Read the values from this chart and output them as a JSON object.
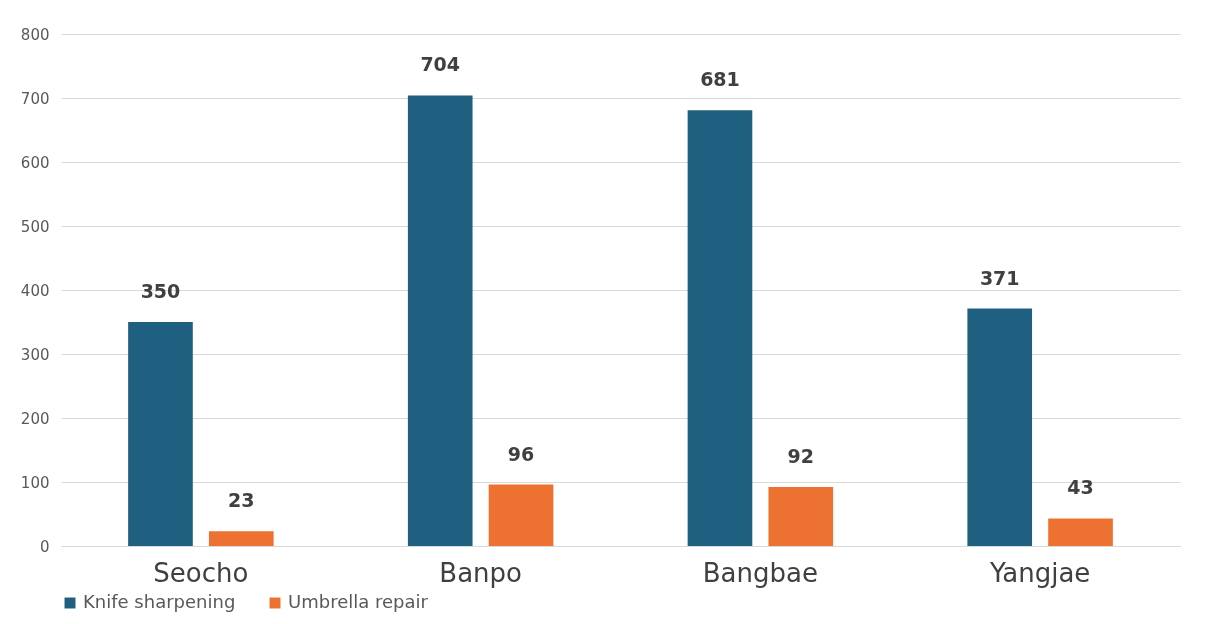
{
  "chart_data": {
    "type": "bar",
    "categories": [
      "Seocho",
      "Banpo",
      "Bangbae",
      "Yangjae"
    ],
    "series": [
      {
        "name": "Knife sharpening",
        "color": "#1f5f7f",
        "values": [
          350,
          704,
          681,
          371
        ]
      },
      {
        "name": "Umbrella repair",
        "color": "#ed7131",
        "values": [
          23,
          96,
          92,
          43
        ]
      }
    ],
    "ylim": [
      0,
      800
    ],
    "yticks": [
      0,
      100,
      200,
      300,
      400,
      500,
      600,
      700,
      800
    ],
    "grid": "y",
    "legend": "bottom",
    "data_labels": true
  }
}
